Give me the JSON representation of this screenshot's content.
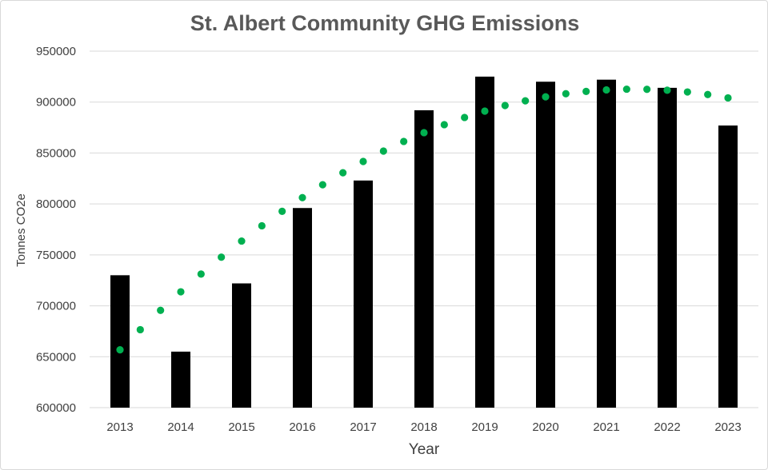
{
  "chart_data": {
    "type": "bar",
    "title": "St. Albert Community GHG Emissions",
    "xlabel": "Year",
    "ylabel": "Tonnes CO2e",
    "categories": [
      "2013",
      "2014",
      "2015",
      "2016",
      "2017",
      "2018",
      "2019",
      "2020",
      "2021",
      "2022",
      "2023"
    ],
    "series": [
      {
        "values": [
          730000,
          655000,
          722000,
          796000,
          823000,
          892000,
          925000,
          920000,
          922000,
          914000,
          877000
        ],
        "color": "#000000"
      }
    ],
    "trendline": {
      "type": "polynomial",
      "style": "dotted",
      "color": "#00b050"
    },
    "ylim": [
      600000,
      950000
    ],
    "yticks": [
      "600000",
      "650000",
      "700000",
      "750000",
      "800000",
      "850000",
      "900000",
      "950000"
    ],
    "grid": true,
    "legend": "none"
  }
}
